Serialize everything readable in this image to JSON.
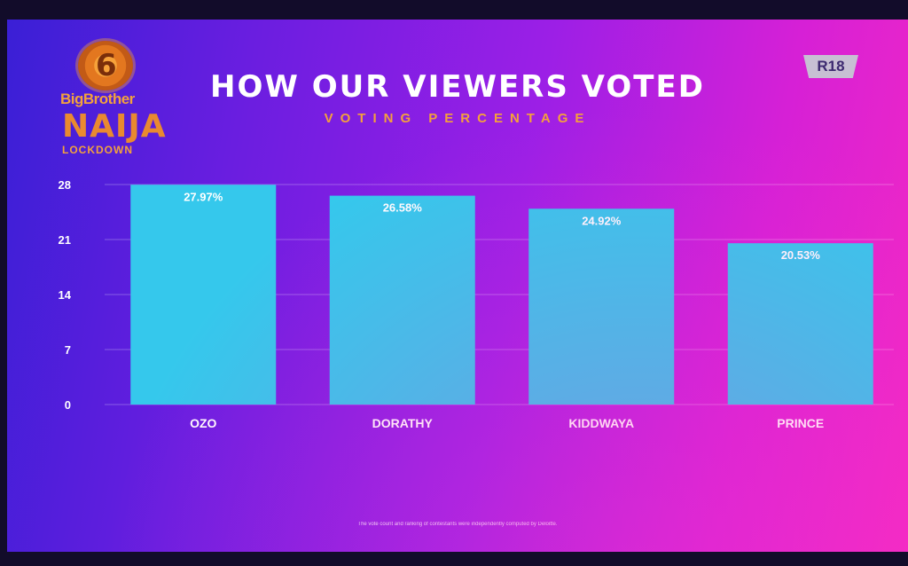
{
  "logo": {
    "line1": "BigBrother",
    "line2": "NAIJA",
    "line3": "LOCKDOWN"
  },
  "header": {
    "title": "HOW OUR VIEWERS VOTED",
    "subtitle": "VOTING PERCENTAGE",
    "rating": "R18"
  },
  "footnote": "The vote count and ranking of contestants were independently computed by Deloitte.",
  "colors": {
    "bar": "#35c8ec",
    "value_label": "#ffffff",
    "subtitle": "#f4a03c"
  },
  "chart_data": {
    "type": "bar",
    "categories": [
      "OZO",
      "DORATHY",
      "KIDDWAYA",
      "PRINCE"
    ],
    "values": [
      27.97,
      26.58,
      24.92,
      20.53
    ],
    "value_labels": [
      "27.97%",
      "26.58%",
      "24.92%",
      "20.53%"
    ],
    "title": "HOW OUR VIEWERS VOTED",
    "subtitle": "VOTING PERCENTAGE",
    "xlabel": "",
    "ylabel": "",
    "yticks": [
      0,
      7,
      14,
      21,
      28
    ],
    "ylim": [
      0,
      28
    ],
    "grid": true,
    "legend": "none"
  }
}
